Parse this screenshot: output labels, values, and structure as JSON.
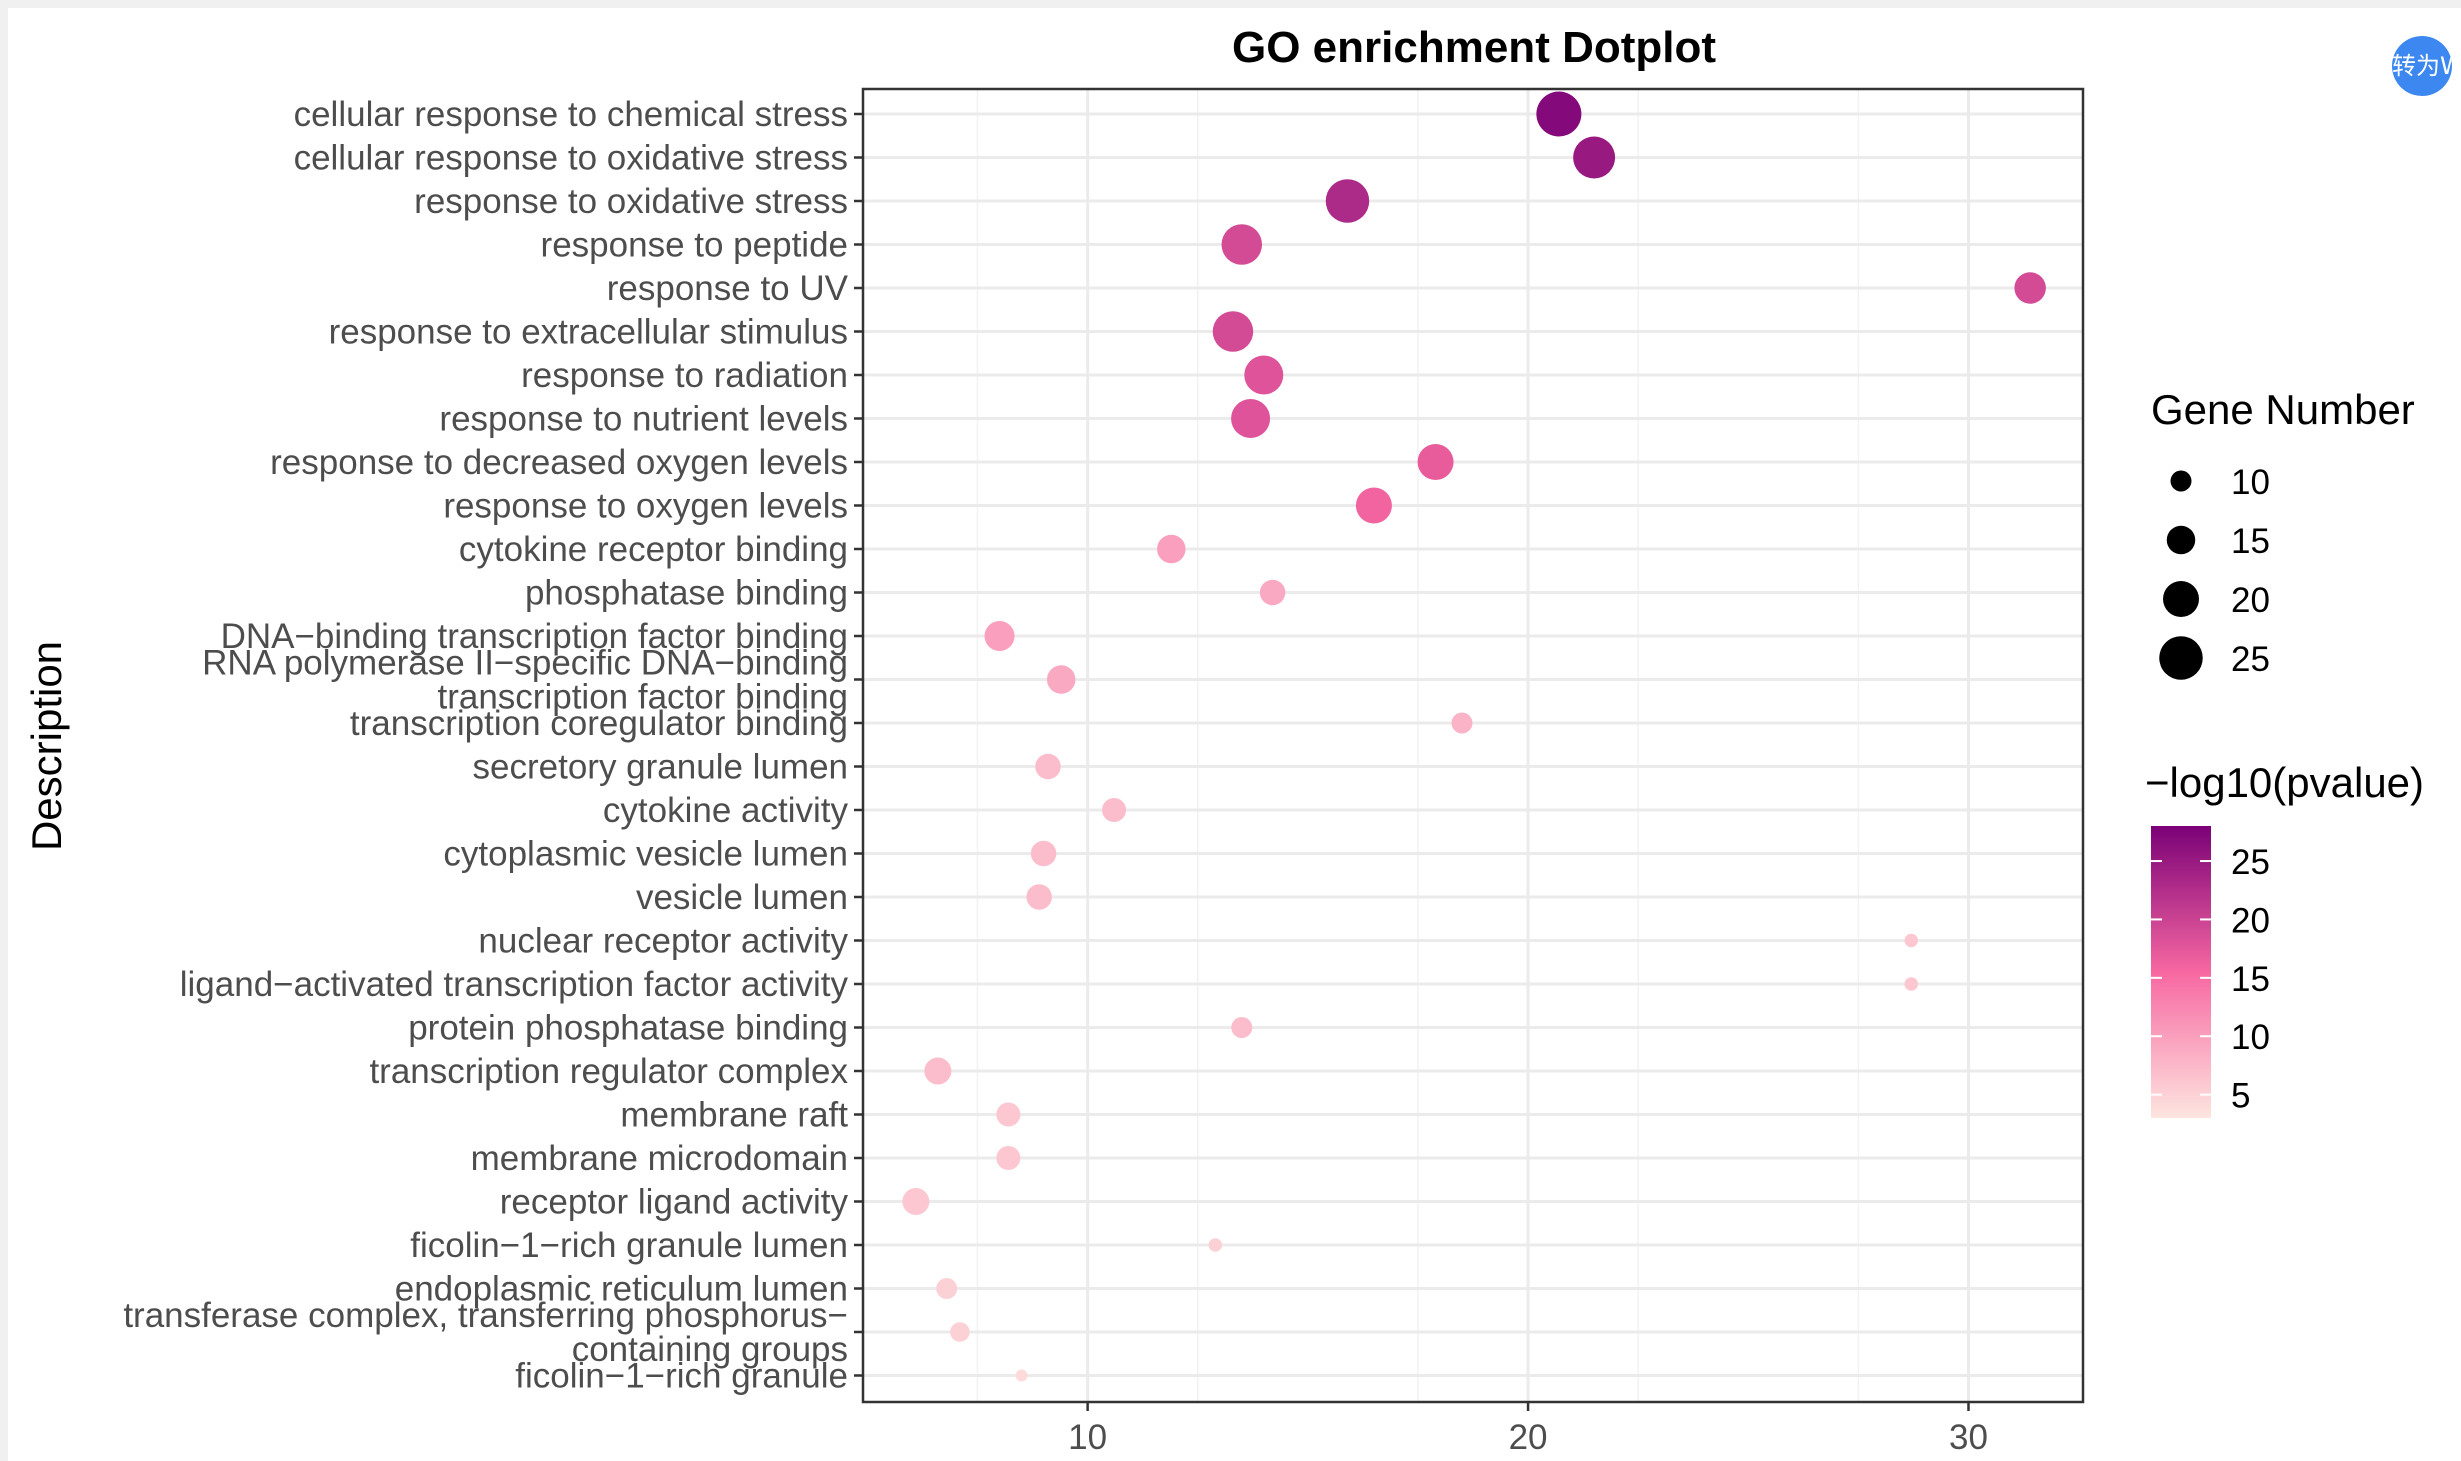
{
  "chart_data": {
    "type": "scatter",
    "title": "GO enrichment Dotplot",
    "xlabel": "",
    "ylabel": "Description",
    "xlim": [
      4.9,
      32.6
    ],
    "xticks": [
      10,
      20,
      30
    ],
    "grid": true,
    "legend_placement": "right",
    "size_legend": {
      "title": "Gene Number",
      "values": [
        10,
        15,
        20,
        25
      ]
    },
    "color_legend": {
      "title": "−log10(pvalue)",
      "values": [
        5,
        10,
        15,
        20,
        25
      ],
      "range": [
        3,
        28
      ],
      "low_color": "#fde5e0",
      "mid_color": "#f768a1",
      "high_color": "#7a0177"
    },
    "points": [
      {
        "label": [
          "cellular response to chemical stress"
        ],
        "x": 20.7,
        "size": 26,
        "color_value": 27
      },
      {
        "label": [
          "cellular response to oxidative stress"
        ],
        "x": 21.5,
        "size": 24,
        "color_value": 25
      },
      {
        "label": [
          "response to oxidative stress"
        ],
        "x": 15.9,
        "size": 25,
        "color_value": 23
      },
      {
        "label": [
          "response to peptide"
        ],
        "x": 13.5,
        "size": 23,
        "color_value": 19
      },
      {
        "label": [
          "response to UV"
        ],
        "x": 31.4,
        "size": 17,
        "color_value": 19
      },
      {
        "label": [
          "response to extracellular stimulus"
        ],
        "x": 13.3,
        "size": 23,
        "color_value": 19
      },
      {
        "label": [
          "response to radiation"
        ],
        "x": 14.0,
        "size": 22,
        "color_value": 18
      },
      {
        "label": [
          "response to nutrient levels"
        ],
        "x": 13.7,
        "size": 22,
        "color_value": 18
      },
      {
        "label": [
          "response to decreased oxygen levels"
        ],
        "x": 17.9,
        "size": 20,
        "color_value": 17
      },
      {
        "label": [
          "response to oxygen levels"
        ],
        "x": 16.5,
        "size": 20,
        "color_value": 16
      },
      {
        "label": [
          "cytokine receptor binding"
        ],
        "x": 11.9,
        "size": 15,
        "color_value": 10
      },
      {
        "label": [
          "phosphatase binding"
        ],
        "x": 14.2,
        "size": 13,
        "color_value": 9
      },
      {
        "label": [
          "DNA−binding transcription factor binding"
        ],
        "x": 8.0,
        "size": 16,
        "color_value": 10
      },
      {
        "label": [
          "RNA polymerase II−specific DNA−binding",
          "transcription factor binding"
        ],
        "x": 9.4,
        "size": 15,
        "color_value": 9
      },
      {
        "label": [
          "transcription coregulator binding"
        ],
        "x": 18.5,
        "size": 10,
        "color_value": 8
      },
      {
        "label": [
          "secretory granule lumen"
        ],
        "x": 9.1,
        "size": 13,
        "color_value": 7
      },
      {
        "label": [
          "cytokine activity"
        ],
        "x": 10.6,
        "size": 12,
        "color_value": 7
      },
      {
        "label": [
          "cytoplasmic vesicle lumen"
        ],
        "x": 9.0,
        "size": 13,
        "color_value": 7
      },
      {
        "label": [
          "vesicle lumen"
        ],
        "x": 8.9,
        "size": 13,
        "color_value": 7
      },
      {
        "label": [
          "nuclear receptor activity"
        ],
        "x": 28.7,
        "size": 5,
        "color_value": 6
      },
      {
        "label": [
          "ligand−activated transcription factor activity"
        ],
        "x": 28.7,
        "size": 5,
        "color_value": 6
      },
      {
        "label": [
          "protein phosphatase binding"
        ],
        "x": 13.5,
        "size": 10,
        "color_value": 7
      },
      {
        "label": [
          "transcription regulator complex"
        ],
        "x": 6.6,
        "size": 14,
        "color_value": 7
      },
      {
        "label": [
          "membrane raft"
        ],
        "x": 8.2,
        "size": 12,
        "color_value": 6
      },
      {
        "label": [
          "membrane microdomain"
        ],
        "x": 8.2,
        "size": 12,
        "color_value": 6
      },
      {
        "label": [
          "receptor ligand activity"
        ],
        "x": 6.1,
        "size": 14,
        "color_value": 6
      },
      {
        "label": [
          "ficolin−1−rich granule lumen"
        ],
        "x": 12.9,
        "size": 5,
        "color_value": 5
      },
      {
        "label": [
          "endoplasmic reticulum lumen"
        ],
        "x": 6.8,
        "size": 10,
        "color_value": 5
      },
      {
        "label": [
          "transferase complex, transferring phosphorus−",
          "containing groups"
        ],
        "x": 7.1,
        "size": 9,
        "color_value": 5
      },
      {
        "label": [
          "ficolin−1−rich granule"
        ],
        "x": 8.5,
        "size": 4,
        "color_value": 4
      }
    ]
  },
  "badge": {
    "text": "转为W"
  }
}
